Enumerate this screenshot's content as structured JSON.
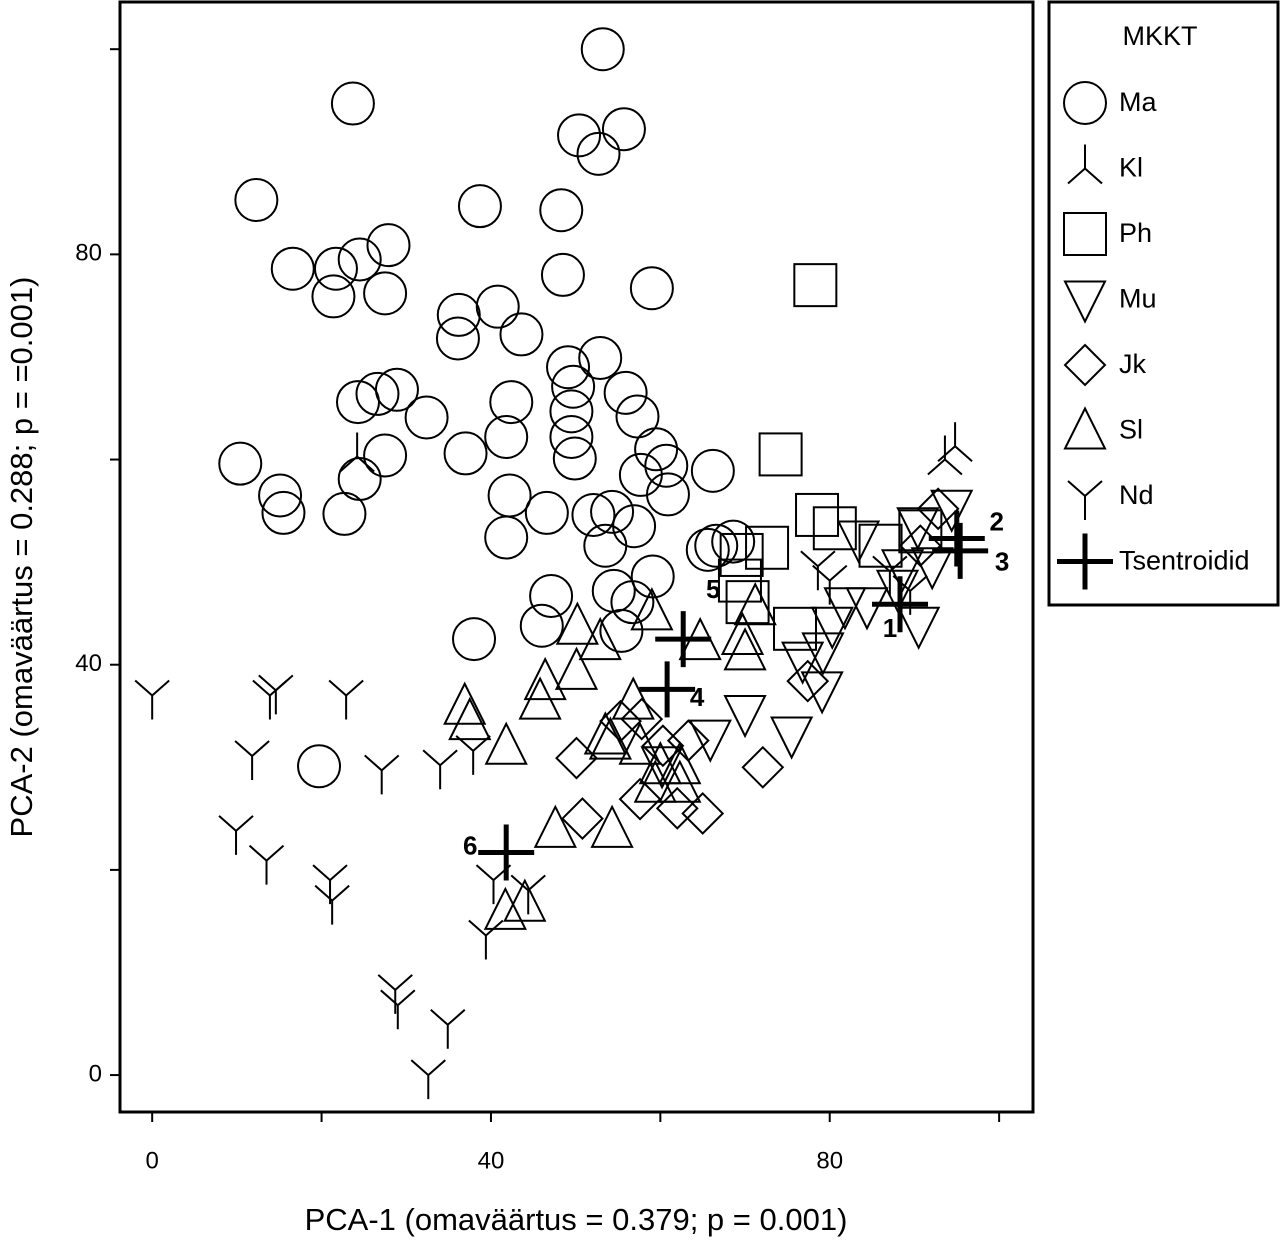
{
  "chart_data": {
    "type": "scatter",
    "xlabel": "PCA-1 (omaväärtus = 0.379; p = 0.001)",
    "ylabel": "PCA-2 (omaväärtus = 0.288; p = =0.001)",
    "legend_title": "MKKT",
    "legend": "outside right",
    "xlim": [
      -3.8,
      104
    ],
    "ylim": [
      -3.6,
      104.6
    ],
    "xticks": [
      0,
      40,
      80
    ],
    "yticks": [
      0,
      40,
      80
    ],
    "xminor_ticks": [
      20,
      60,
      100
    ],
    "yminor_ticks": [
      20,
      60,
      100
    ],
    "series": [
      {
        "name": "Ma",
        "marker": "circle",
        "color": "#000000",
        "x": [
          53.2,
          23.7,
          50.4,
          55.7,
          52.7,
          12.3,
          38.7,
          48.3,
          16.6,
          21.7,
          24.5,
          27.9,
          21.4,
          27.5,
          48.5,
          59.0,
          36.2,
          40.8,
          36.1,
          43.6,
          49.1,
          52.9,
          49.7,
          26.6,
          28.9,
          24.3,
          32.4,
          42.4,
          55.9,
          49.5,
          57.3,
          49.5,
          10.4,
          37,
          41.8,
          27.5,
          49.9,
          59.5,
          60.7,
          57.7,
          66.2,
          24.5,
          15.1,
          15.5,
          22.7,
          42.2,
          46.6,
          41.8,
          52.1,
          54.3,
          60.9,
          56.9,
          53.5,
          65.6,
          68.6,
          54.5,
          59.1,
          47.1,
          56.7,
          46.0,
          38,
          55.4,
          19.7,
          66.6
        ],
        "values": [
          100,
          94.7,
          91.6,
          92.2,
          89.8,
          85.3,
          84.7,
          84.3,
          78.6,
          78.6,
          79.5,
          80.9,
          75.9,
          76.2,
          78,
          76.7,
          74.1,
          74.9,
          71.8,
          72.2,
          69,
          69.9,
          67.1,
          66.4,
          66.8,
          65.6,
          64.1,
          65.6,
          66.5,
          64.7,
          64.2,
          62.2,
          59.6,
          60.6,
          62.2,
          60.4,
          60.1,
          61,
          59.4,
          58.5,
          58.9,
          58.1,
          56.5,
          54.8,
          54.7,
          56.5,
          54.8,
          52.4,
          54.6,
          54.9,
          56.6,
          53.5,
          51.6,
          51.2,
          52,
          47.2,
          48.6,
          46.7,
          46.1,
          43.8,
          42.5,
          43.3,
          30.1,
          51.6
        ]
      },
      {
        "name": "Kl",
        "marker": "kl",
        "color": "#000000",
        "x": [
          94.8,
          93.6,
          24.2
        ],
        "values": [
          61.3,
          60,
          60.3
        ]
      },
      {
        "name": "Ph",
        "marker": "square",
        "color": "#000000",
        "x": [
          78.3,
          74.2,
          78.5,
          80.6,
          72.6,
          69.6,
          70.3,
          75.9,
          86,
          90.7,
          69.4
        ],
        "values": [
          77,
          60.5,
          54.6,
          53.3,
          51.4,
          50.7,
          46.1,
          43.5,
          51.6,
          53,
          48.2
        ]
      },
      {
        "name": "Mu",
        "marker": "triangle-down",
        "color": "#000000",
        "x": [
          94.4,
          90.4,
          83.4,
          84.4,
          88,
          90.5,
          81.8,
          80.3,
          79.2,
          76.8,
          79.1,
          70,
          75.5,
          65.9,
          60.2,
          88.6,
          92.1
        ],
        "values": [
          55.2,
          53.5,
          52.2,
          45.7,
          47.4,
          43.8,
          45.7,
          43.8,
          41.3,
          40.4,
          37.5,
          35.2,
          33.1,
          32.8,
          30.2,
          49.4,
          49.6
        ]
      },
      {
        "name": "Jk",
        "marker": "diamond",
        "color": "#000000",
        "x": [
          92.8,
          90.7,
          77.4,
          72.1,
          50.1,
          50.8,
          57.6,
          62,
          65.0,
          60.3,
          63.3,
          55.3,
          57.8
        ],
        "values": [
          55.2,
          51.6,
          38.4,
          30,
          30.9,
          25,
          26.9,
          26,
          25.5,
          32.1,
          32.6,
          34.5,
          34.7
        ]
      },
      {
        "name": "Sl",
        "marker": "triangle-up",
        "color": "#000000",
        "x": [
          71.2,
          69.7,
          70,
          64.7,
          59.0,
          50.2,
          52.9,
          50.1,
          46.4,
          45.8,
          36.9,
          37.5,
          41.8,
          54.1,
          57.6,
          60.0,
          62.3,
          59.4,
          62.3,
          47.6,
          54.3,
          44.0,
          41.7,
          56.8,
          53.5
        ],
        "values": [
          45.7,
          42.8,
          41.3,
          42.3,
          45.2,
          43.8,
          42.3,
          39.4,
          38.4,
          36.5,
          36,
          34.5,
          32.1,
          32.6,
          32.1,
          30.2,
          30.2,
          28.4,
          28.4,
          24,
          24,
          16.8,
          16.0,
          36.5,
          33.1
        ]
      },
      {
        "name": "Nd",
        "marker": "nd",
        "color": "#000000",
        "x": [
          0,
          11.8,
          14.6,
          13.9,
          22.9,
          27.1,
          34,
          37.9,
          9.9,
          13.5,
          21,
          21.25,
          40.3,
          39.4,
          28.7,
          29,
          34.9,
          32.6,
          44.4,
          87.1,
          89.5,
          80,
          78.6
        ],
        "values": [
          37,
          31.1,
          37.5,
          37,
          37,
          29.7,
          30.2,
          31.6,
          23.8,
          20.9,
          19,
          17,
          19,
          13.6,
          8.3,
          6.8,
          4.9,
          0,
          18,
          49.1,
          47.2,
          48.2,
          49.6
        ]
      },
      {
        "name": "Tsentroidid",
        "marker": "plus",
        "color": "#000000",
        "x": [
          88.3,
          95.0,
          95.4,
          60.8,
          62.7,
          41.8
        ],
        "values": [
          45.9,
          52.3,
          51.1,
          37.6,
          42.5,
          21.7
        ],
        "labels": [
          "1",
          "2",
          "3",
          "4",
          "5",
          "6"
        ]
      }
    ]
  }
}
